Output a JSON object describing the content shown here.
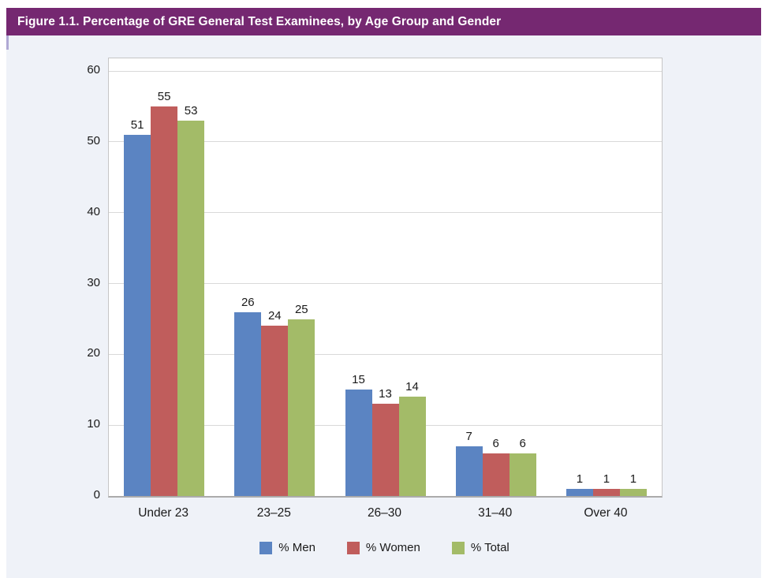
{
  "figure": {
    "title": "Figure 1.1. Percentage of GRE General Test Examinees, by Age Group and Gender"
  },
  "colors": {
    "header_bg": "#752871",
    "header_text": "#FFFFFF",
    "panel_bg": "#EFF2F8",
    "accent_tick": "#B0A9D4",
    "plot_bg": "#FFFFFF",
    "plot_border": "#C6C6C6",
    "gridline": "#D9D9D9",
    "axis_line": "#ABABAB",
    "label_text": "#1A1A1A",
    "series": {
      "men": "#5B84C2",
      "women": "#C05D5C",
      "total": "#A3BB68"
    }
  },
  "chart_data": {
    "type": "bar",
    "title": "Figure 1.1. Percentage of GRE General Test Examinees, by Age Group and Gender",
    "categories": [
      "Under 23",
      "23–25",
      "26–30",
      "31–40",
      "Over 40"
    ],
    "series": [
      {
        "name": "% Men",
        "color_key": "men",
        "values": [
          51,
          26,
          15,
          7,
          1
        ]
      },
      {
        "name": "% Women",
        "color_key": "women",
        "values": [
          55,
          24,
          13,
          6,
          1
        ]
      },
      {
        "name": "% Total",
        "color_key": "total",
        "values": [
          53,
          25,
          14,
          6,
          1
        ]
      }
    ],
    "xlabel": "",
    "ylabel": "",
    "ylim": [
      0,
      60
    ],
    "yticks": [
      0,
      10,
      20,
      30,
      40,
      50,
      60
    ],
    "grid": true,
    "data_labels": true,
    "legend_position": "bottom"
  }
}
